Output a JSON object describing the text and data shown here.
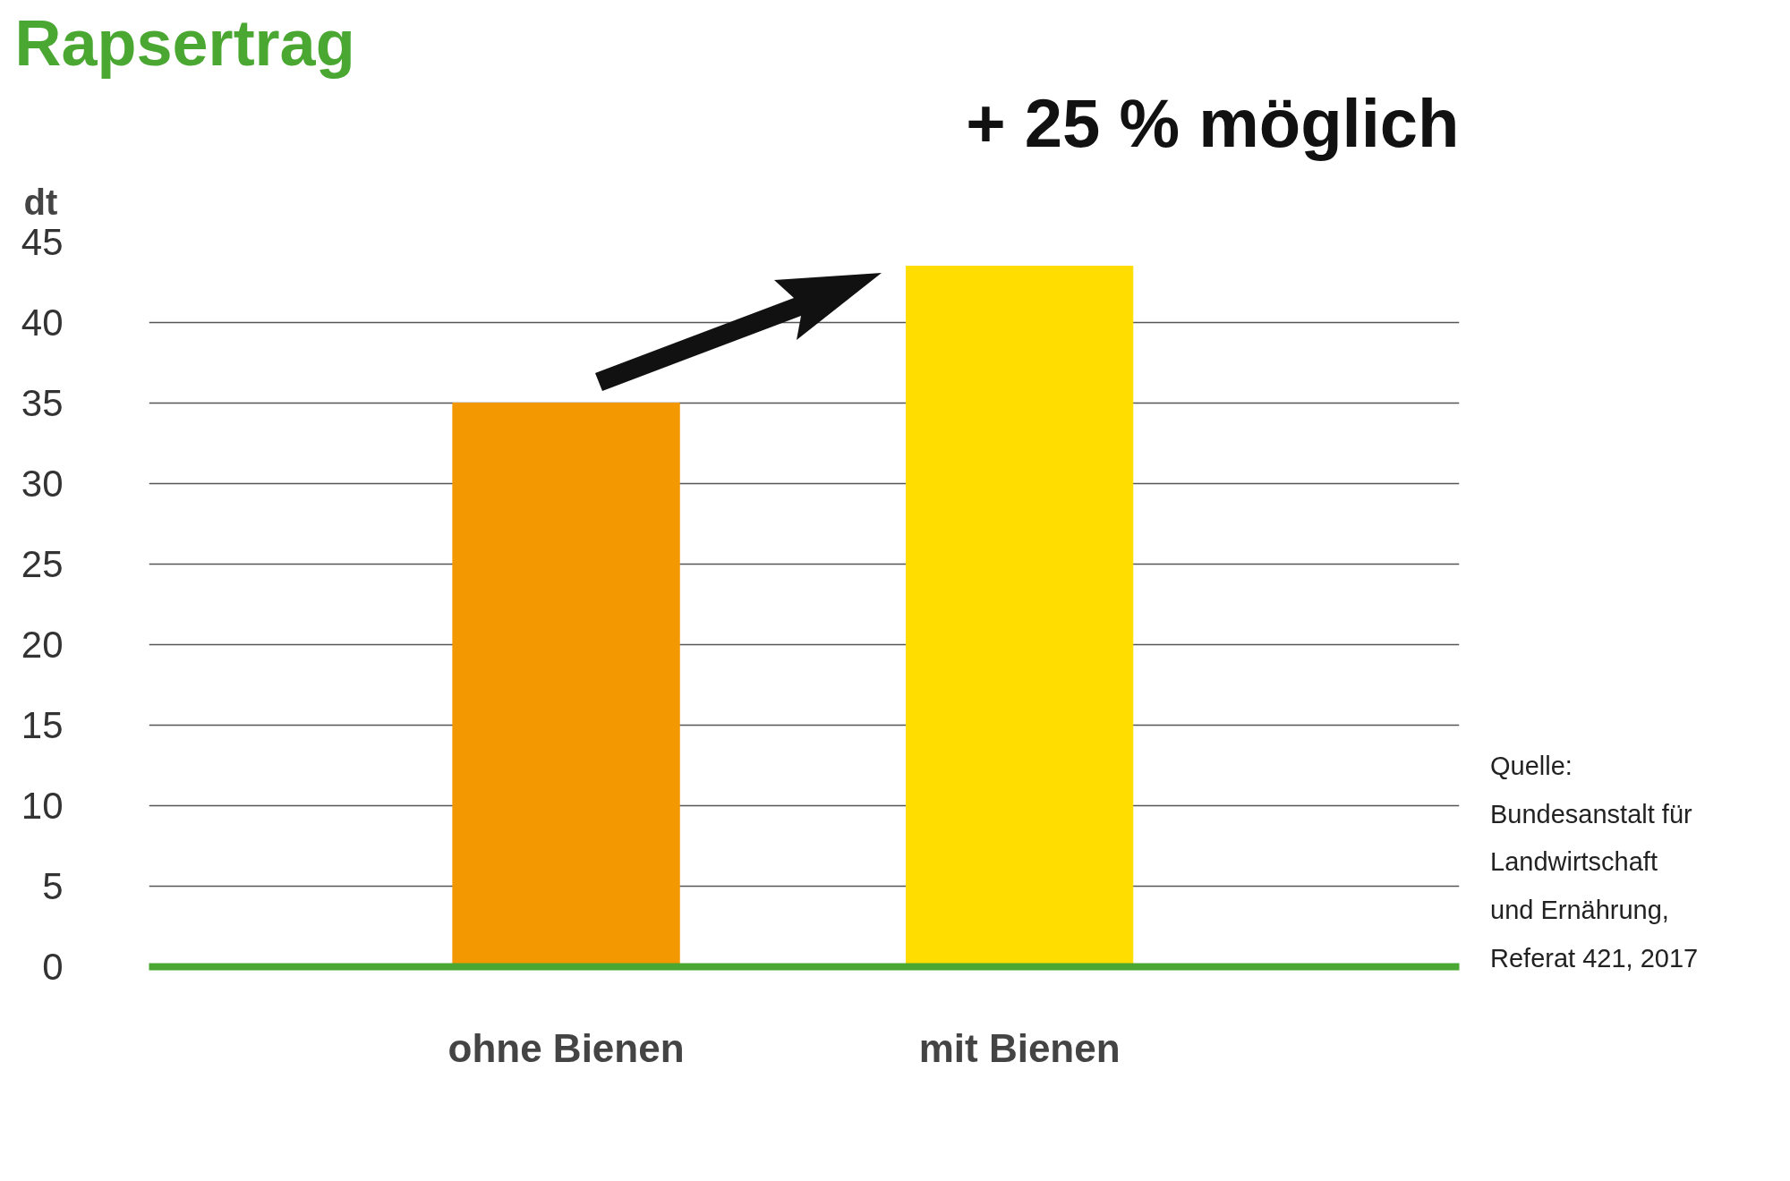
{
  "chart_data": {
    "type": "bar",
    "title": "Rapsertrag",
    "ylabel": "dt",
    "categories": [
      "ohne Bienen",
      "mit Bienen"
    ],
    "values": [
      35,
      43.5
    ],
    "colors": [
      "#f39800",
      "#ffdd00"
    ],
    "ylim": [
      0,
      45
    ],
    "yticks": [
      0,
      5,
      10,
      15,
      20,
      25,
      30,
      35,
      40,
      45
    ],
    "grid": "y",
    "annotations": [
      "+ 25 % möglich",
      "Quelle:\nBundesanstalt für\nLandwirtschaft\nund Ernährung,\nReferat 421, 2017"
    ]
  }
}
